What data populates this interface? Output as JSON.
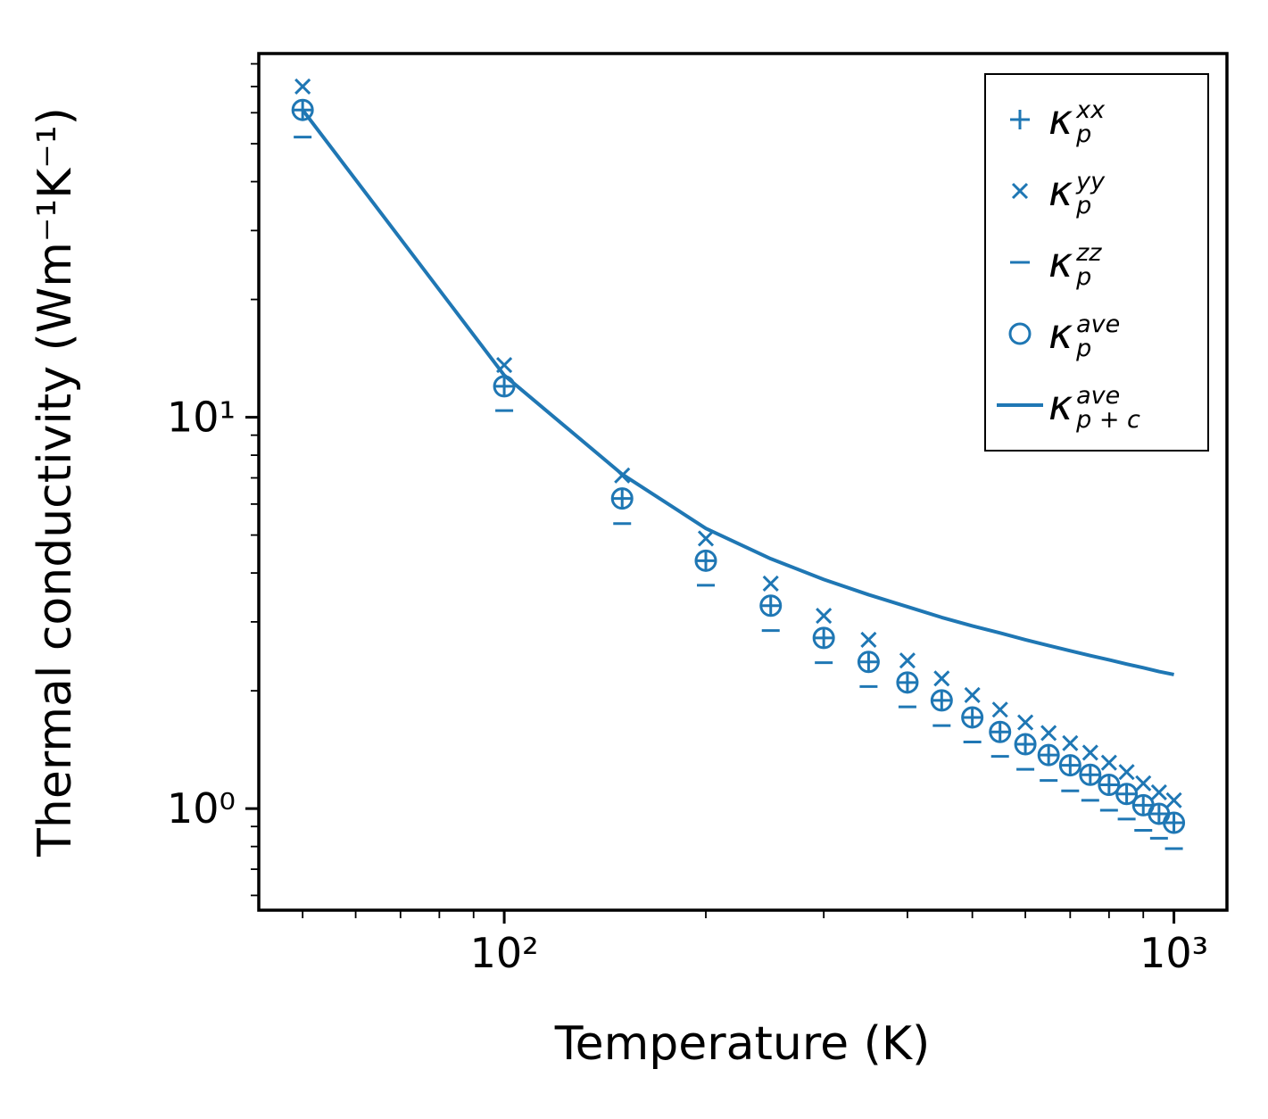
{
  "figure": {
    "background": "#ffffff",
    "spine_color": "#000000"
  },
  "chart_data": {
    "type": "line",
    "title": "",
    "xlabel": "Temperature (K)",
    "ylabel": "Thermal conductivity (Wm⁻¹K⁻¹)",
    "xscale": "log",
    "yscale": "log",
    "xlim": [
      43,
      1200
    ],
    "ylim": [
      0.55,
      85
    ],
    "grid": false,
    "legend_position": "upper right",
    "color": "#1f77b4",
    "x_major_ticks": [
      {
        "value": 100,
        "label": "10²"
      },
      {
        "value": 1000,
        "label": "10³"
      }
    ],
    "y_major_ticks": [
      {
        "value": 1,
        "label": "10⁰"
      },
      {
        "value": 10,
        "label": "10¹"
      }
    ],
    "x": [
      50,
      100,
      150,
      200,
      250,
      300,
      350,
      400,
      450,
      500,
      550,
      600,
      650,
      700,
      750,
      800,
      850,
      900,
      950,
      1000
    ],
    "series": [
      {
        "name": "kappa-p-xx",
        "marker": "plus",
        "label_text": "κ_p^xx",
        "legend": {
          "base": "κ",
          "sup": "xx",
          "sub": "p"
        },
        "values": [
          61,
          12.0,
          6.2,
          4.3,
          3.3,
          2.73,
          2.37,
          2.1,
          1.89,
          1.71,
          1.57,
          1.46,
          1.37,
          1.29,
          1.22,
          1.15,
          1.09,
          1.02,
          0.97,
          0.92
        ]
      },
      {
        "name": "kappa-p-yy",
        "marker": "x",
        "label_text": "κ_p^yy",
        "legend": {
          "base": "κ",
          "sup": "yy",
          "sub": "p"
        },
        "values": [
          70,
          13.6,
          7.1,
          4.9,
          3.76,
          3.11,
          2.7,
          2.39,
          2.15,
          1.95,
          1.79,
          1.66,
          1.56,
          1.47,
          1.39,
          1.31,
          1.24,
          1.16,
          1.1,
          1.05
        ]
      },
      {
        "name": "kappa-p-zz",
        "marker": "minus",
        "label_text": "κ_p^zz",
        "legend": {
          "base": "κ",
          "sup": "zz",
          "sub": "p"
        },
        "values": [
          52,
          10.4,
          5.35,
          3.72,
          2.85,
          2.36,
          2.05,
          1.82,
          1.63,
          1.48,
          1.36,
          1.26,
          1.18,
          1.11,
          1.05,
          0.99,
          0.94,
          0.88,
          0.84,
          0.79
        ]
      },
      {
        "name": "kappa-p-ave",
        "marker": "circle",
        "label_text": "κ_p^ave",
        "legend": {
          "base": "κ",
          "sup": "ave",
          "sub": "p"
        },
        "values": [
          61,
          12.0,
          6.2,
          4.3,
          3.3,
          2.73,
          2.37,
          2.1,
          1.89,
          1.71,
          1.57,
          1.46,
          1.37,
          1.29,
          1.22,
          1.15,
          1.09,
          1.02,
          0.97,
          0.92
        ]
      },
      {
        "name": "kappa-p-plus-c-ave",
        "marker": "line",
        "label_text": "κ_p+c^ave",
        "legend": {
          "base": "κ",
          "sup": "ave",
          "sub": "p + c"
        },
        "values": [
          61,
          12.8,
          7.15,
          5.2,
          4.35,
          3.85,
          3.52,
          3.28,
          3.08,
          2.93,
          2.81,
          2.7,
          2.61,
          2.53,
          2.46,
          2.4,
          2.34,
          2.29,
          2.24,
          2.2
        ]
      }
    ]
  }
}
